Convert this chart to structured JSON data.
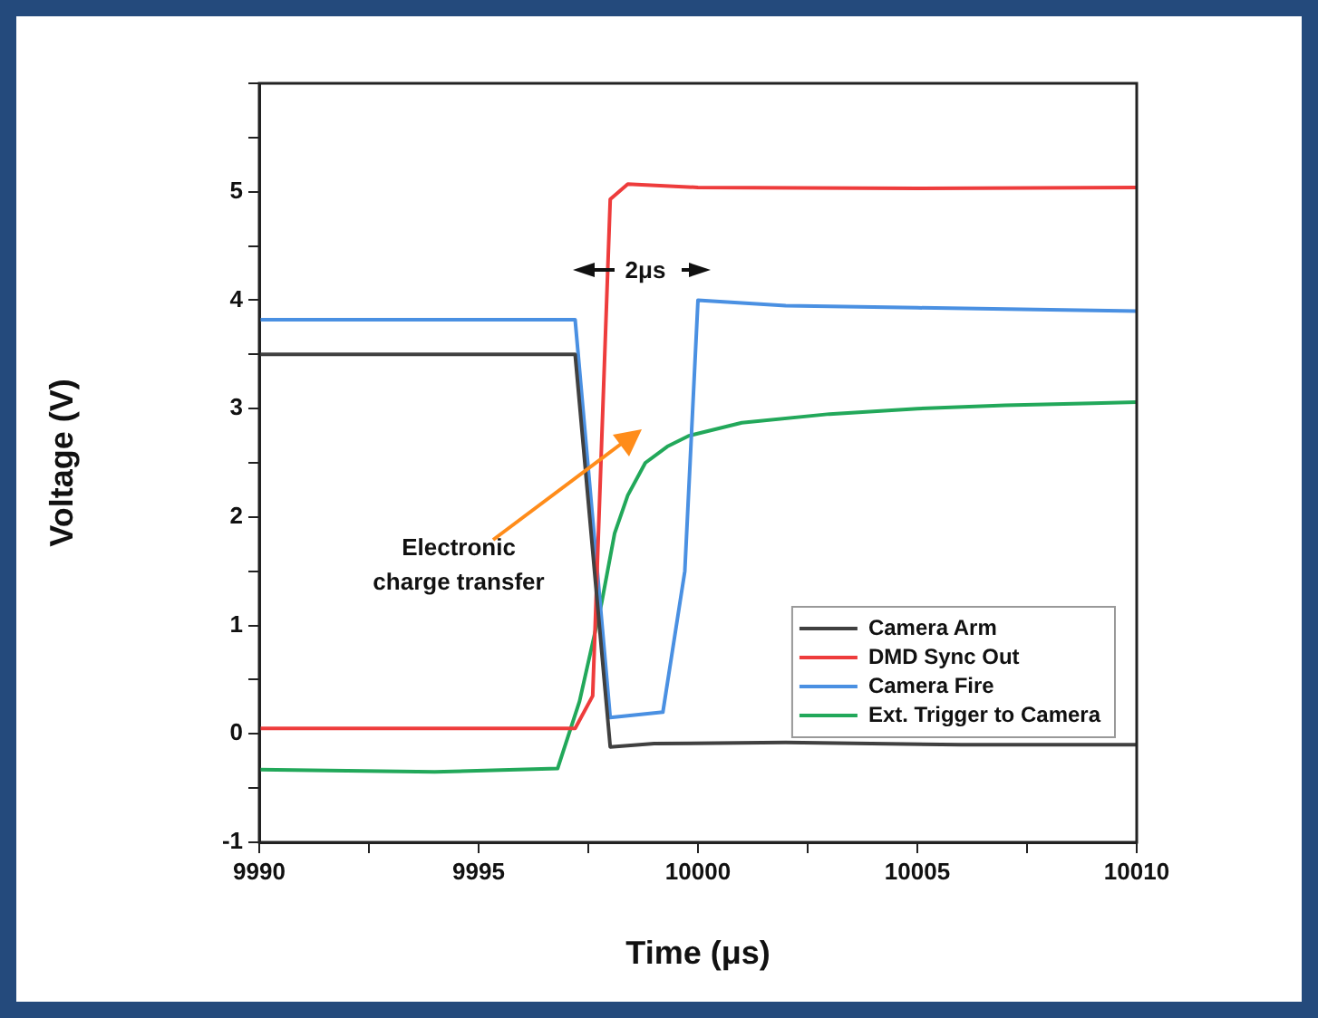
{
  "chart_data": {
    "type": "line",
    "xlabel": "Time (μs)",
    "ylabel": "Voltage (V)",
    "xlim": [
      9990,
      10010
    ],
    "xticks": [
      9990,
      {
        "value": 9992.5,
        "label": null
      },
      9995,
      {
        "value": 9997.5,
        "label": null
      },
      10000,
      {
        "value": 10002.5,
        "label": null
      },
      10005,
      {
        "value": 10007.5,
        "label": null
      },
      10010
    ],
    "ylim": [
      -1,
      6
    ],
    "yticks": [
      -1,
      {
        "value": -0.5,
        "label": null
      },
      0,
      {
        "value": 0.5,
        "label": null
      },
      1,
      {
        "value": 1.5,
        "label": null
      },
      2,
      {
        "value": 2.5,
        "label": null
      },
      3,
      {
        "value": 3.5,
        "label": null
      },
      4,
      {
        "value": 4.5,
        "label": null
      },
      5,
      {
        "value": 5.5,
        "label": null
      },
      {
        "value": 6,
        "label": null
      }
    ],
    "grid": false,
    "legend": "bottom right",
    "marker": "none",
    "line_style": "solid",
    "annotations": [
      "Electronic charge transfer",
      "2μs"
    ],
    "series": [
      {
        "name": "Camera Arm",
        "color": "#404040",
        "x": [
          9990,
          9993,
          9996,
          9997.2,
          9998,
          9999,
          10002,
          10006,
          10010
        ],
        "values": [
          3.5,
          3.5,
          3.5,
          3.5,
          -0.12,
          -0.09,
          -0.08,
          -0.1,
          -0.1
        ]
      },
      {
        "name": "DMD Sync Out",
        "color": "#ee3c3c",
        "x": [
          9990,
          9994,
          9997.2,
          9997.6,
          9998,
          9998.4,
          10000,
          10005,
          10010
        ],
        "values": [
          0.05,
          0.05,
          0.05,
          0.35,
          4.93,
          5.07,
          5.04,
          5.03,
          5.04
        ]
      },
      {
        "name": "Camera Fire",
        "color": "#4a90e2",
        "x": [
          9990,
          9994,
          9997.2,
          9998,
          9999.2,
          9999.7,
          10000,
          10002,
          10005,
          10010
        ],
        "values": [
          3.82,
          3.82,
          3.82,
          0.15,
          0.2,
          1.5,
          4.0,
          3.95,
          3.93,
          3.9
        ]
      },
      {
        "name": "Ext. Trigger to Camera",
        "color": "#22a85a",
        "x": [
          9990,
          9992,
          9994,
          9996.8,
          9997.3,
          9997.8,
          9998.1,
          9998.4,
          9998.8,
          9999.3,
          9999.8,
          10001,
          10003,
          10005,
          10007,
          10009,
          10010
        ],
        "values": [
          -0.33,
          -0.34,
          -0.35,
          -0.32,
          0.3,
          1.2,
          1.85,
          2.2,
          2.5,
          2.65,
          2.75,
          2.87,
          2.95,
          3.0,
          3.03,
          3.05,
          3.06
        ]
      }
    ]
  }
}
